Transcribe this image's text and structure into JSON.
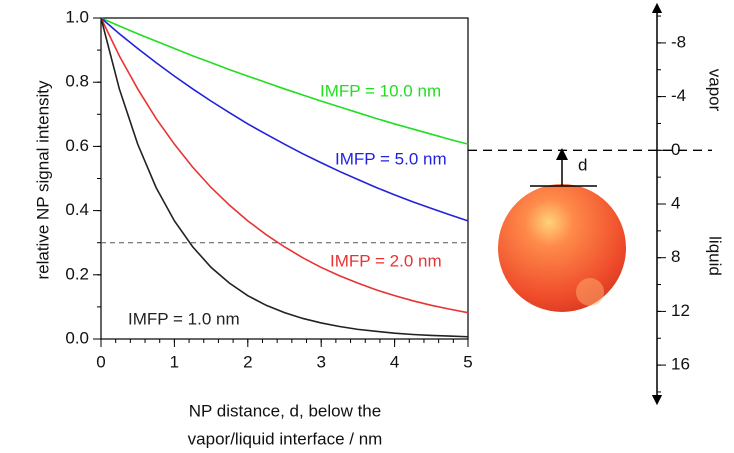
{
  "chart_data": {
    "type": "line",
    "ylabel": "relative NP signal intensity",
    "xlabel": [
      "NP distance, d, below the",
      "vapor/liquid interface / nm"
    ],
    "x": [
      0,
      0.25,
      0.5,
      0.75,
      1,
      1.25,
      1.5,
      1.75,
      2,
      2.25,
      2.5,
      2.75,
      3,
      3.25,
      3.5,
      3.75,
      4,
      4.25,
      4.5,
      4.75,
      5
    ],
    "series": [
      {
        "name": "IMFP = 10.0 nm",
        "color": "#22dd22",
        "values": [
          1,
          0.975,
          0.951,
          0.928,
          0.905,
          0.882,
          0.861,
          0.839,
          0.819,
          0.799,
          0.779,
          0.76,
          0.741,
          0.723,
          0.705,
          0.687,
          0.67,
          0.654,
          0.638,
          0.622,
          0.607
        ]
      },
      {
        "name": "IMFP = 5.0 nm",
        "color": "#2222dd",
        "values": [
          1,
          0.951,
          0.905,
          0.861,
          0.819,
          0.779,
          0.741,
          0.705,
          0.67,
          0.638,
          0.607,
          0.577,
          0.549,
          0.522,
          0.497,
          0.472,
          0.449,
          0.427,
          0.407,
          0.387,
          0.368
        ]
      },
      {
        "name": "IMFP = 2.0 nm",
        "color": "#e83333",
        "values": [
          1,
          0.882,
          0.779,
          0.687,
          0.607,
          0.535,
          0.472,
          0.417,
          0.368,
          0.325,
          0.287,
          0.253,
          0.223,
          0.197,
          0.174,
          0.153,
          0.135,
          0.119,
          0.105,
          0.093,
          0.082
        ]
      },
      {
        "name": "IMFP = 1.0 nm",
        "color": "#222222",
        "values": [
          1,
          0.779,
          0.607,
          0.472,
          0.368,
          0.287,
          0.223,
          0.174,
          0.135,
          0.105,
          0.082,
          0.064,
          0.05,
          0.039,
          0.03,
          0.024,
          0.018,
          0.014,
          0.011,
          0.009,
          0.007
        ]
      }
    ],
    "xlim": [
      0,
      5
    ],
    "xticks": [
      0,
      1,
      2,
      3,
      4,
      5
    ],
    "ylim": [
      0,
      1
    ],
    "yticks": [
      {
        "value": 0,
        "label": "0.0"
      },
      0.2,
      0.4,
      0.6,
      0.8,
      {
        "value": 1,
        "label": "1.0"
      }
    ],
    "hline": 0.3,
    "depth_axis": {
      "lim": [
        -10.6,
        18.6
      ],
      "ticks": [
        -8,
        -4,
        0,
        4,
        8,
        12,
        16
      ],
      "labels": [
        "vapor",
        "liquid"
      ],
      "reference": 0
    },
    "diagram": {
      "label": "d"
    }
  }
}
